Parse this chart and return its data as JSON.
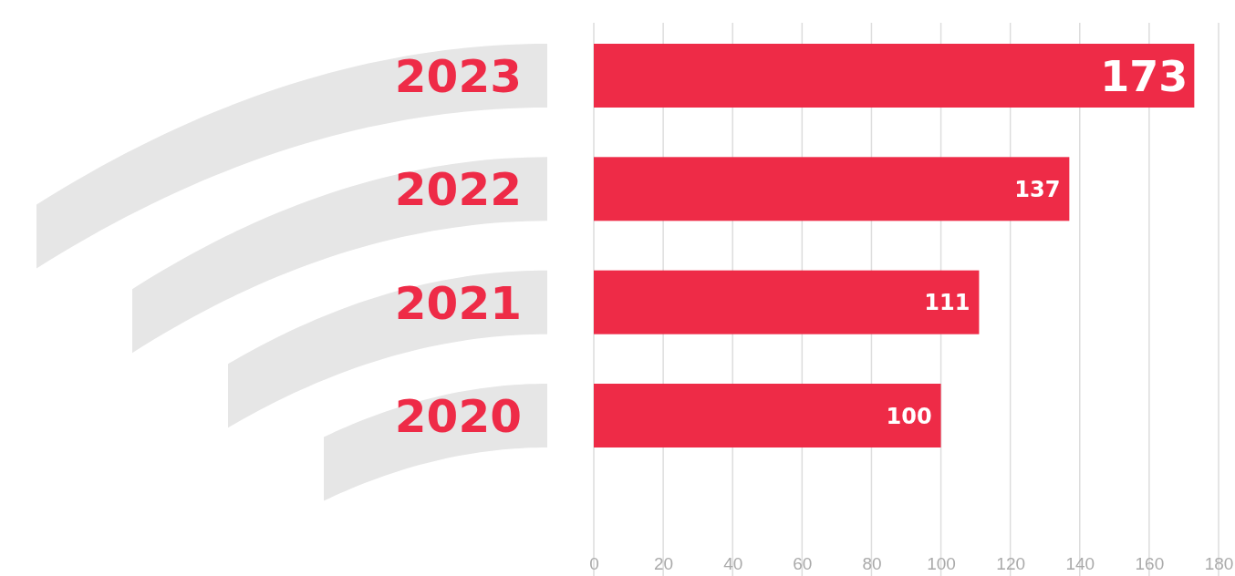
{
  "chart_data": {
    "type": "bar",
    "orientation": "horizontal",
    "categories": [
      "2023",
      "2022",
      "2021",
      "2020"
    ],
    "values": [
      173,
      137,
      111,
      100
    ],
    "color": "#ee2b47",
    "xlim": [
      0,
      180
    ],
    "xticks": [
      0,
      20,
      40,
      60,
      80,
      100,
      120,
      140,
      160,
      180
    ],
    "grid": "x",
    "data_labels": true
  }
}
